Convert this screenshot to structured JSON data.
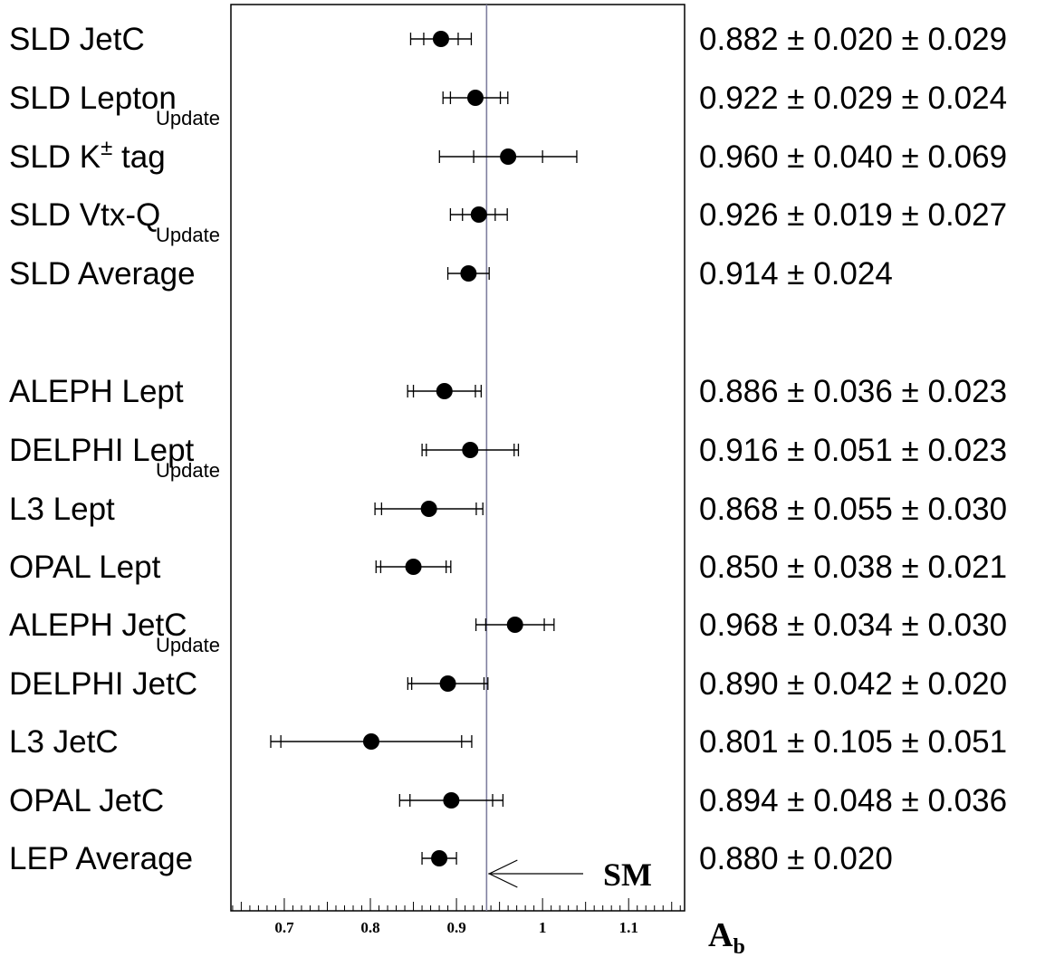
{
  "chart_data": {
    "type": "scatter",
    "title": "",
    "xlabel": "A",
    "xlabel_sub": "b",
    "xlim": [
      0.638,
      1.165
    ],
    "x_ticks": [
      "0.7",
      "0.8",
      "0.9",
      "1",
      "1.1"
    ],
    "x_tick_values": [
      0.7,
      0.8,
      0.9,
      1.0,
      1.1
    ],
    "sm_value": 0.935,
    "sm_label": "SM",
    "grid": false,
    "measurements": [
      {
        "label": "SLD JetC",
        "note": "",
        "value": 0.882,
        "stat": 0.02,
        "syst": 0.029,
        "value_text": "0.882 ± 0.020 ± 0.029"
      },
      {
        "label": "SLD Lepton",
        "note": "Update",
        "value": 0.922,
        "stat": 0.029,
        "syst": 0.024,
        "value_text": "0.922 ± 0.029 ± 0.024"
      },
      {
        "label": "SLD K",
        "label_sup": "±",
        "label_after": " tag",
        "note": "",
        "value": 0.96,
        "stat": 0.04,
        "syst": 0.069,
        "value_text": "0.960 ± 0.040 ± 0.069"
      },
      {
        "label": "SLD Vtx-Q",
        "note": "Update",
        "value": 0.926,
        "stat": 0.019,
        "syst": 0.027,
        "value_text": "0.926 ± 0.019 ± 0.027"
      },
      {
        "label": "SLD Average",
        "note": "",
        "value": 0.914,
        "stat": 0.024,
        "syst": 0.0,
        "value_text": "0.914 ± 0.024"
      },
      {
        "label": "ALEPH Lept",
        "note": "",
        "value": 0.886,
        "stat": 0.036,
        "syst": 0.023,
        "value_text": "0.886 ± 0.036 ± 0.023"
      },
      {
        "label": "DELPHI Lept",
        "note": "Update",
        "value": 0.916,
        "stat": 0.051,
        "syst": 0.023,
        "value_text": "0.916 ± 0.051 ± 0.023"
      },
      {
        "label": "L3 Lept",
        "note": "",
        "value": 0.868,
        "stat": 0.055,
        "syst": 0.03,
        "value_text": "0.868 ± 0.055 ± 0.030"
      },
      {
        "label": "OPAL Lept",
        "note": "",
        "value": 0.85,
        "stat": 0.038,
        "syst": 0.021,
        "value_text": "0.850 ± 0.038 ± 0.021"
      },
      {
        "label": "ALEPH JetC",
        "note": "Update",
        "value": 0.968,
        "stat": 0.034,
        "syst": 0.03,
        "value_text": "0.968 ± 0.034 ± 0.030"
      },
      {
        "label": "DELPHI JetC",
        "note": "",
        "value": 0.89,
        "stat": 0.042,
        "syst": 0.02,
        "value_text": "0.890 ± 0.042 ± 0.020"
      },
      {
        "label": "L3 JetC",
        "note": "",
        "value": 0.801,
        "stat": 0.105,
        "syst": 0.051,
        "value_text": "0.801 ± 0.105 ± 0.051"
      },
      {
        "label": "OPAL JetC",
        "note": "",
        "value": 0.894,
        "stat": 0.048,
        "syst": 0.036,
        "value_text": "0.894 ± 0.048 ± 0.036"
      },
      {
        "label": "LEP Average",
        "note": "",
        "value": 0.88,
        "stat": 0.02,
        "syst": 0.0,
        "value_text": "0.880 ± 0.020"
      }
    ]
  }
}
